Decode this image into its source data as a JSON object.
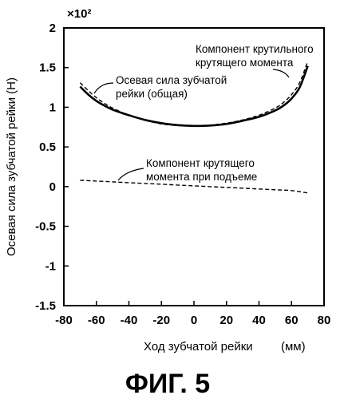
{
  "figure_caption": "ФИГ. 5",
  "chart_data": {
    "type": "line",
    "title": "",
    "xlabel": "Ход зубчатой рейки",
    "xlabel_unit": "(мм)",
    "ylabel": "Осевая сила зубчатой рейки (Н)",
    "y_multiplier": "×10²",
    "xlim": [
      -80,
      80
    ],
    "ylim": [
      -1.5,
      2
    ],
    "xticks": [
      "-80",
      "-60",
      "-40",
      "-20",
      "0",
      "20",
      "40",
      "60",
      "80"
    ],
    "yticks": [
      "2",
      "1.5",
      "1",
      "0.5",
      "0",
      "-0.5",
      "-1",
      "-1.5"
    ],
    "grid": false,
    "series": [
      {
        "name": "Осевая сила зубчатой рейки (общая)",
        "style": "solid",
        "x": [
          -70,
          -65,
          -60,
          -55,
          -50,
          -40,
          -30,
          -20,
          -10,
          0,
          10,
          20,
          30,
          40,
          50,
          55,
          60,
          65,
          70
        ],
        "values": [
          1.26,
          1.16,
          1.08,
          1.02,
          0.97,
          0.9,
          0.84,
          0.8,
          0.775,
          0.765,
          0.77,
          0.79,
          0.83,
          0.88,
          0.96,
          1.02,
          1.11,
          1.25,
          1.52
        ]
      },
      {
        "name": "Компонент крутильного крутящего момента",
        "style": "dashed",
        "x": [
          -70,
          -65,
          -60,
          -55,
          -50,
          -40,
          -30,
          -20,
          -10,
          0,
          10,
          20,
          30,
          40,
          50,
          55,
          60,
          65,
          70
        ],
        "values": [
          1.31,
          1.21,
          1.12,
          1.05,
          0.99,
          0.9,
          0.84,
          0.79,
          0.77,
          0.765,
          0.775,
          0.8,
          0.84,
          0.9,
          0.99,
          1.06,
          1.16,
          1.31,
          1.58
        ]
      },
      {
        "name": "Компонент крутящего момента при подъеме",
        "style": "dashed",
        "x": [
          -70,
          -50,
          -30,
          -10,
          10,
          30,
          50,
          60,
          70
        ],
        "values": [
          0.08,
          0.06,
          0.04,
          0.02,
          0.0,
          -0.02,
          -0.04,
          -0.05,
          -0.08
        ]
      }
    ],
    "annotations": [
      {
        "lines": [
          "Осевая сила зубчатой",
          "рейки (общая)"
        ]
      },
      {
        "lines": [
          "Компонент крутильного",
          "крутящего момента"
        ]
      },
      {
        "lines": [
          "Компонент крутящего",
          "момента при подъеме"
        ]
      }
    ]
  }
}
